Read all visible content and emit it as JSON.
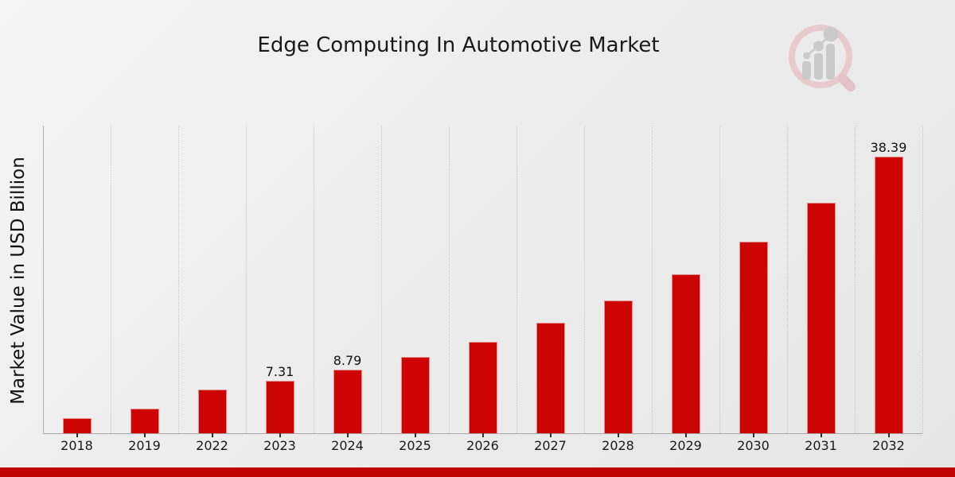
{
  "chart_data": {
    "type": "bar",
    "title": "Edge Computing In Automotive Market",
    "xlabel": "",
    "ylabel": "Market Value in USD Billion",
    "categories": [
      "2018",
      "2019",
      "2022",
      "2023",
      "2024",
      "2025",
      "2026",
      "2027",
      "2028",
      "2029",
      "2030",
      "2031",
      "2032"
    ],
    "values": [
      2.15,
      3.45,
      6.1,
      7.31,
      8.79,
      10.57,
      12.71,
      15.29,
      18.38,
      22.1,
      26.58,
      31.96,
      38.39
    ],
    "data_labels": [
      "",
      "",
      "",
      "7.31",
      "8.79",
      "",
      "",
      "",
      "",
      "",
      "",
      "",
      "38.39"
    ],
    "ylim": [
      0,
      42.7
    ],
    "grid": "vertical-dotted",
    "legend_position": "none",
    "bar_color": "#cc0404",
    "axis_color": "#a9a9a9",
    "gridline_color": "#c6c6c6",
    "label_color": "#1a1a1a"
  },
  "footer": {
    "accent_bar_color": "#c30404"
  },
  "branding": {
    "logo_name": "market-research-future-logo",
    "ring_color": "#e8c9cb",
    "handle_color": "#e3bfc2",
    "bars_color": "#c9c9c9"
  }
}
